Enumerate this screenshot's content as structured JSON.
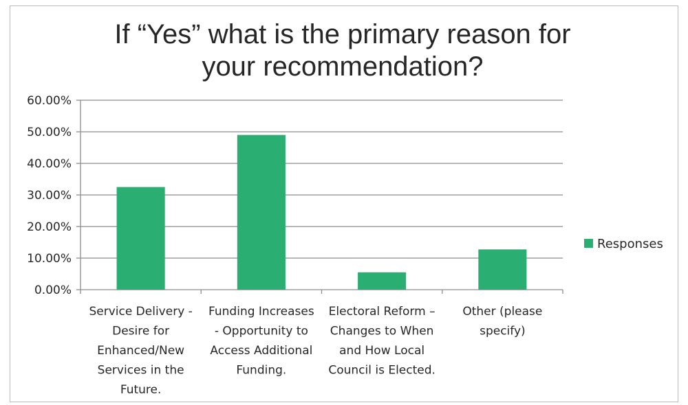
{
  "chart_data": {
    "type": "bar",
    "title": "If “Yes” what is the primary reason for your recommendation?",
    "title_lines": [
      "If “Yes” what is the primary reason for",
      "your recommendation?"
    ],
    "categories": [
      "Service Delivery - Desire for Enhanced/New Services in the Future.",
      "Funding Increases - Opportunity to Access Additional Funding.",
      "Electoral Reform – Changes to When and How Local Council is Elected.",
      "Other (please specify)"
    ],
    "category_label_lines": [
      [
        "Service Delivery -",
        "Desire for",
        "Enhanced/New",
        "Services in the",
        "Future."
      ],
      [
        "Funding Increases",
        "- Opportunity to",
        "Access Additional",
        "Funding."
      ],
      [
        "Electoral Reform –",
        "Changes to When",
        "and How Local",
        "Council is Elected."
      ],
      [
        "Other (please",
        "specify)"
      ]
    ],
    "series": [
      {
        "name": "Responses",
        "values": [
          32.5,
          49.0,
          5.5,
          12.75
        ],
        "color": "#2aae72"
      }
    ],
    "ylim": [
      0,
      60
    ],
    "y_ticks": [
      {
        "value": 0,
        "label": "0.00%"
      },
      {
        "value": 10,
        "label": "10.00%"
      },
      {
        "value": 20,
        "label": "20.00%"
      },
      {
        "value": 30,
        "label": "30.00%"
      },
      {
        "value": 40,
        "label": "40.00%"
      },
      {
        "value": 50,
        "label": "50.00%"
      },
      {
        "value": 60,
        "label": "60.00%"
      }
    ],
    "xlabel": "",
    "ylabel": "",
    "grid": true,
    "legend": "right",
    "colors": {
      "gridline": "#8c8c8c",
      "axis": "#8c8c8c",
      "text": "#262626"
    }
  }
}
